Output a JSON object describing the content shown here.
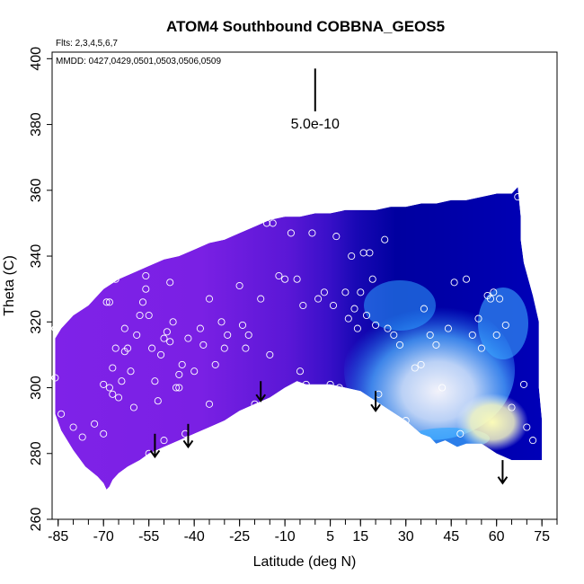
{
  "chart_data": {
    "type": "heatmap",
    "title": "ATOM4 Southbound COBBNA_GEOS5",
    "flights_note": "Flts: 2,3,4,5,6,7",
    "dates_note": "MMDD: 0427,0429,0501,0503,0506,0509",
    "xlabel": "Latitude (deg N)",
    "ylabel": "Theta (C)",
    "xlim": [
      -87,
      80
    ],
    "ylim": [
      260,
      402
    ],
    "x_ticks": [
      -85,
      -70,
      -55,
      -40,
      -25,
      -10,
      5,
      15,
      30,
      45,
      60,
      75
    ],
    "x_minor_ticks": [
      -85,
      -80,
      -75,
      -70,
      -65,
      -60,
      -55,
      -50,
      -45,
      -40,
      -35,
      -30,
      -25,
      -20,
      -15,
      -10,
      -5,
      0,
      5,
      10,
      15,
      20,
      25,
      30,
      35,
      40,
      45,
      50,
      55,
      60,
      65,
      70,
      75,
      80
    ],
    "y_ticks": [
      260,
      280,
      300,
      320,
      340,
      360,
      380,
      400
    ],
    "scale_bar": {
      "label": "5.0e-10",
      "x": 0,
      "y_from": 384,
      "y_to": 397
    },
    "colors": {
      "purple": "#7f22e8",
      "violet": "#5a17d6",
      "blue": "#2410c8",
      "navy": "#0000a0",
      "cyan": "#30a0ff",
      "light": "#d8ecff",
      "yellow": "#f8f8b0"
    },
    "surface_arrows": [
      [
        -53,
        286,
        279
      ],
      [
        -42,
        289,
        282
      ],
      [
        -18,
        302,
        296
      ],
      [
        20,
        299,
        293
      ],
      [
        62,
        278,
        271
      ]
    ],
    "observations": [
      [
        -86,
        318
      ],
      [
        -84,
        292
      ],
      [
        -80,
        288
      ],
      [
        -77,
        285
      ],
      [
        -73,
        289
      ],
      [
        -70,
        286
      ],
      [
        -68,
        300
      ],
      [
        -67,
        306
      ],
      [
        -66,
        312
      ],
      [
        -67,
        298
      ],
      [
        -65,
        297
      ],
      [
        -64,
        302
      ],
      [
        -63,
        318
      ],
      [
        -62,
        312
      ],
      [
        -61,
        305
      ],
      [
        -60,
        294
      ],
      [
        -59,
        316
      ],
      [
        -58,
        322
      ],
      [
        -57,
        326
      ],
      [
        -56,
        330
      ],
      [
        -55,
        322
      ],
      [
        -54,
        312
      ],
      [
        -53,
        302
      ],
      [
        -52,
        296
      ],
      [
        -51,
        310
      ],
      [
        -50,
        315
      ],
      [
        -49,
        317
      ],
      [
        -48,
        314
      ],
      [
        -47,
        320
      ],
      [
        -46,
        300
      ],
      [
        -45,
        304
      ],
      [
        -44,
        307
      ],
      [
        -43,
        286
      ],
      [
        -42,
        315
      ],
      [
        -40,
        305
      ],
      [
        -38,
        318
      ],
      [
        -37,
        313
      ],
      [
        -35,
        327
      ],
      [
        -33,
        307
      ],
      [
        -31,
        320
      ],
      [
        -30,
        312
      ],
      [
        -29,
        316
      ],
      [
        -27,
        290
      ],
      [
        -25,
        331
      ],
      [
        -24,
        319
      ],
      [
        -23,
        312
      ],
      [
        -22,
        316
      ],
      [
        -20,
        295
      ],
      [
        -18,
        327
      ],
      [
        -16,
        350
      ],
      [
        -14,
        350
      ],
      [
        -12,
        334
      ],
      [
        -10,
        333
      ],
      [
        -8,
        347
      ],
      [
        -6,
        333
      ],
      [
        -4,
        325
      ],
      [
        -3,
        301
      ],
      [
        -1,
        347
      ],
      [
        1,
        327
      ],
      [
        3,
        329
      ],
      [
        5,
        301
      ],
      [
        6,
        325
      ],
      [
        7,
        346
      ],
      [
        8,
        300
      ],
      [
        10,
        329
      ],
      [
        11,
        321
      ],
      [
        12,
        340
      ],
      [
        13,
        324
      ],
      [
        14,
        318
      ],
      [
        15,
        329
      ],
      [
        16,
        341
      ],
      [
        17,
        322
      ],
      [
        18,
        341
      ],
      [
        19,
        333
      ],
      [
        20,
        319
      ],
      [
        21,
        298
      ],
      [
        23,
        345
      ],
      [
        24,
        318
      ],
      [
        26,
        316
      ],
      [
        28,
        313
      ],
      [
        30,
        290
      ],
      [
        33,
        306
      ],
      [
        35,
        307
      ],
      [
        36,
        324
      ],
      [
        38,
        316
      ],
      [
        40,
        313
      ],
      [
        42,
        300
      ],
      [
        44,
        318
      ],
      [
        46,
        332
      ],
      [
        48,
        286
      ],
      [
        50,
        333
      ],
      [
        52,
        316
      ],
      [
        54,
        321
      ],
      [
        55,
        312
      ],
      [
        57,
        328
      ],
      [
        58,
        327
      ],
      [
        59,
        329
      ],
      [
        60,
        316
      ],
      [
        61,
        327
      ],
      [
        63,
        319
      ],
      [
        65,
        294
      ],
      [
        67,
        358
      ],
      [
        69,
        301
      ],
      [
        70,
        288
      ],
      [
        72,
        284
      ],
      [
        -86,
        303
      ],
      [
        -70,
        301
      ],
      [
        -55,
        280
      ],
      [
        -50,
        284
      ],
      [
        -45,
        300
      ],
      [
        -40,
        280
      ],
      [
        -35,
        295
      ],
      [
        -15,
        310
      ],
      [
        -5,
        305
      ],
      [
        -48,
        332
      ],
      [
        -56,
        334
      ],
      [
        -63,
        311
      ],
      [
        -66,
        333
      ],
      [
        -69,
        326
      ],
      [
        -68,
        326
      ]
    ]
  }
}
